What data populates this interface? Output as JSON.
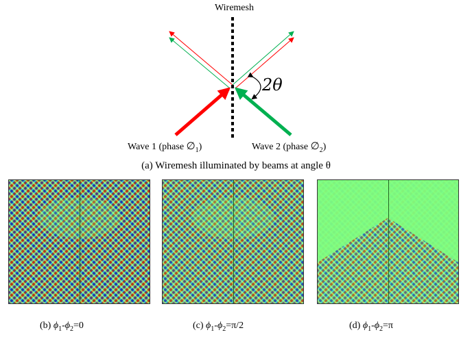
{
  "top": {
    "wiremesh_label": "Wiremesh",
    "angle_label": "2θ",
    "wave1": {
      "prefix": "Wave 1 (phase ",
      "symbol": "∅",
      "sub": "1",
      "suffix": ")"
    },
    "wave2": {
      "prefix": "Wave 2 (phase ",
      "symbol": "∅",
      "sub": "2",
      "suffix": ")"
    },
    "caption": "(a) Wiremesh illuminated by beams at angle θ",
    "colors": {
      "wave1": "#ff0000",
      "wave2": "#00b050",
      "mesh": "#000000"
    }
  },
  "panels": [
    {
      "caption_prefix": "(b) ",
      "sym1": "ϕ",
      "sub1": "1",
      "dash": "-",
      "sym2": "ϕ",
      "sub2": "2",
      "value": "=0"
    },
    {
      "caption_prefix": "(c) ",
      "sym1": "ϕ",
      "sub1": "1",
      "dash": "-",
      "sym2": "ϕ",
      "sub2": "2",
      "value": "=π/2"
    },
    {
      "caption_prefix": "(d) ",
      "sym1": "ϕ",
      "sub1": "1",
      "dash": "-",
      "sym2": "ϕ",
      "sub2": "2",
      "value": "=π"
    }
  ],
  "colormap": {
    "background": "#80ff80",
    "low": "#0000c0",
    "high": "#c00000"
  }
}
